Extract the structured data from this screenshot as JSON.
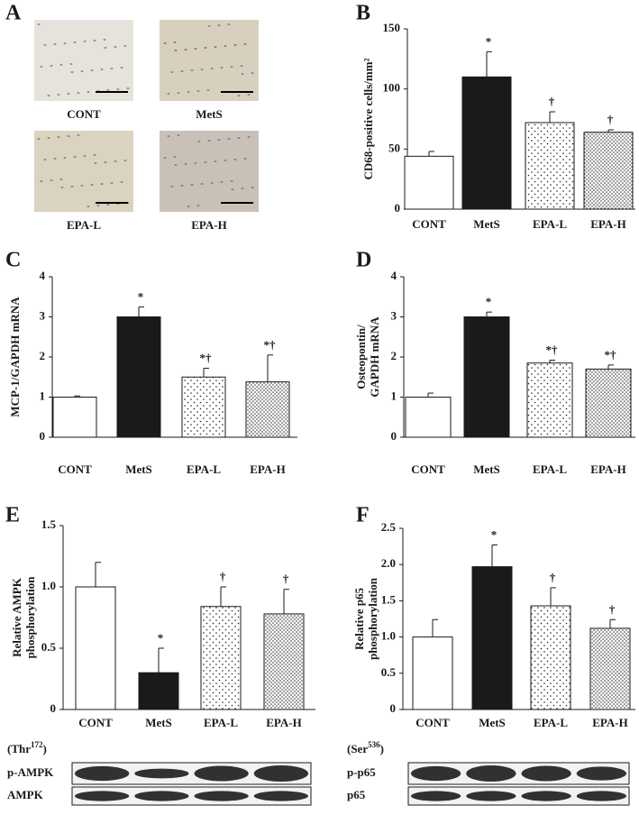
{
  "micrographs": {
    "panel": "A",
    "labels": [
      "CONT",
      "MetS",
      "EPA-L",
      "EPA-H"
    ]
  },
  "chart_data": [
    {
      "type": "bar",
      "panel": "B",
      "ylabel": [
        "CD68-positive cells/mm²"
      ],
      "categories": [
        "CONT",
        "MetS",
        "EPA-L",
        "EPA-H"
      ],
      "values": [
        44,
        110,
        72,
        64
      ],
      "errors": [
        4,
        21,
        9,
        2
      ],
      "annotations": [
        null,
        "*",
        "†",
        "†"
      ],
      "colors": [
        "#ffffff",
        "#1a1a1a",
        "#ffffff",
        "#ffffff"
      ],
      "patterns": [
        null,
        null,
        "sparse",
        "dense"
      ],
      "ylim": [
        0,
        150
      ],
      "yticks": [
        0,
        50,
        100,
        150
      ]
    },
    {
      "type": "bar",
      "panel": "C",
      "ylabel": [
        "MCP-1/GAPDH mRNA"
      ],
      "categories": [
        "CONT",
        "MetS",
        "EPA-L",
        "EPA-H"
      ],
      "values": [
        1.0,
        3.0,
        1.5,
        1.38
      ],
      "errors": [
        0.03,
        0.25,
        0.22,
        0.67
      ],
      "annotations": [
        null,
        "*",
        "*†",
        "*†"
      ],
      "colors": [
        "#ffffff",
        "#1a1a1a",
        "#ffffff",
        "#ffffff"
      ],
      "patterns": [
        null,
        null,
        "sparse",
        "dense"
      ],
      "ylim": [
        0,
        4
      ],
      "yticks": [
        0,
        1,
        2,
        3,
        4
      ]
    },
    {
      "type": "bar",
      "panel": "D",
      "ylabel": [
        "Osteopontin/",
        "GAPDH mRNA"
      ],
      "categories": [
        "CONT",
        "MetS",
        "EPA-L",
        "EPA-H"
      ],
      "values": [
        1.0,
        3.0,
        1.85,
        1.7
      ],
      "errors": [
        0.1,
        0.12,
        0.07,
        0.1
      ],
      "annotations": [
        null,
        "*",
        "*†",
        "*†"
      ],
      "colors": [
        "#ffffff",
        "#1a1a1a",
        "#ffffff",
        "#ffffff"
      ],
      "patterns": [
        null,
        null,
        "sparse",
        "dense"
      ],
      "ylim": [
        0,
        4
      ],
      "yticks": [
        0,
        1,
        2,
        3,
        4
      ]
    },
    {
      "type": "bar",
      "panel": "E",
      "ylabel": [
        "Relative AMPK",
        "phosphorylation"
      ],
      "categories": [
        "CONT",
        "MetS",
        "EPA-L",
        "EPA-H"
      ],
      "values": [
        1.0,
        0.3,
        0.84,
        0.78
      ],
      "errors": [
        0.2,
        0.2,
        0.16,
        0.2
      ],
      "annotations": [
        null,
        "*",
        "†",
        "†"
      ],
      "colors": [
        "#ffffff",
        "#1a1a1a",
        "#ffffff",
        "#ffffff"
      ],
      "patterns": [
        null,
        null,
        "sparse",
        "dense"
      ],
      "ylim": [
        0,
        1.5
      ],
      "yticks": [
        0,
        0.5,
        {
          "value": 1,
          "label": "1.0"
        },
        1.5
      ]
    },
    {
      "type": "bar",
      "panel": "F",
      "ylabel": [
        "Relative p65",
        "phosphorylation"
      ],
      "categories": [
        "CONT",
        "MetS",
        "EPA-L",
        "EPA-H"
      ],
      "values": [
        1.0,
        1.97,
        1.43,
        1.12
      ],
      "errors": [
        0.24,
        0.3,
        0.25,
        0.12
      ],
      "annotations": [
        null,
        "*",
        "†",
        "†"
      ],
      "colors": [
        "#ffffff",
        "#1a1a1a",
        "#ffffff",
        "#ffffff"
      ],
      "patterns": [
        null,
        null,
        "sparse",
        "dense"
      ],
      "ylim": [
        0,
        2.5
      ],
      "yticks": [
        0,
        0.5,
        {
          "value": 1,
          "label": "1.0"
        },
        1.5,
        {
          "value": 2,
          "label": "2.0"
        },
        2.5
      ]
    }
  ],
  "blots": [
    {
      "site_open": "(Thr",
      "site_sup": "172",
      "site_close": ")",
      "rows": [
        "p-AMPK",
        "AMPK"
      ]
    },
    {
      "site_open": "(Ser",
      "site_sup": "536",
      "site_close": ")",
      "rows": [
        "p-p65",
        "p65"
      ]
    }
  ]
}
